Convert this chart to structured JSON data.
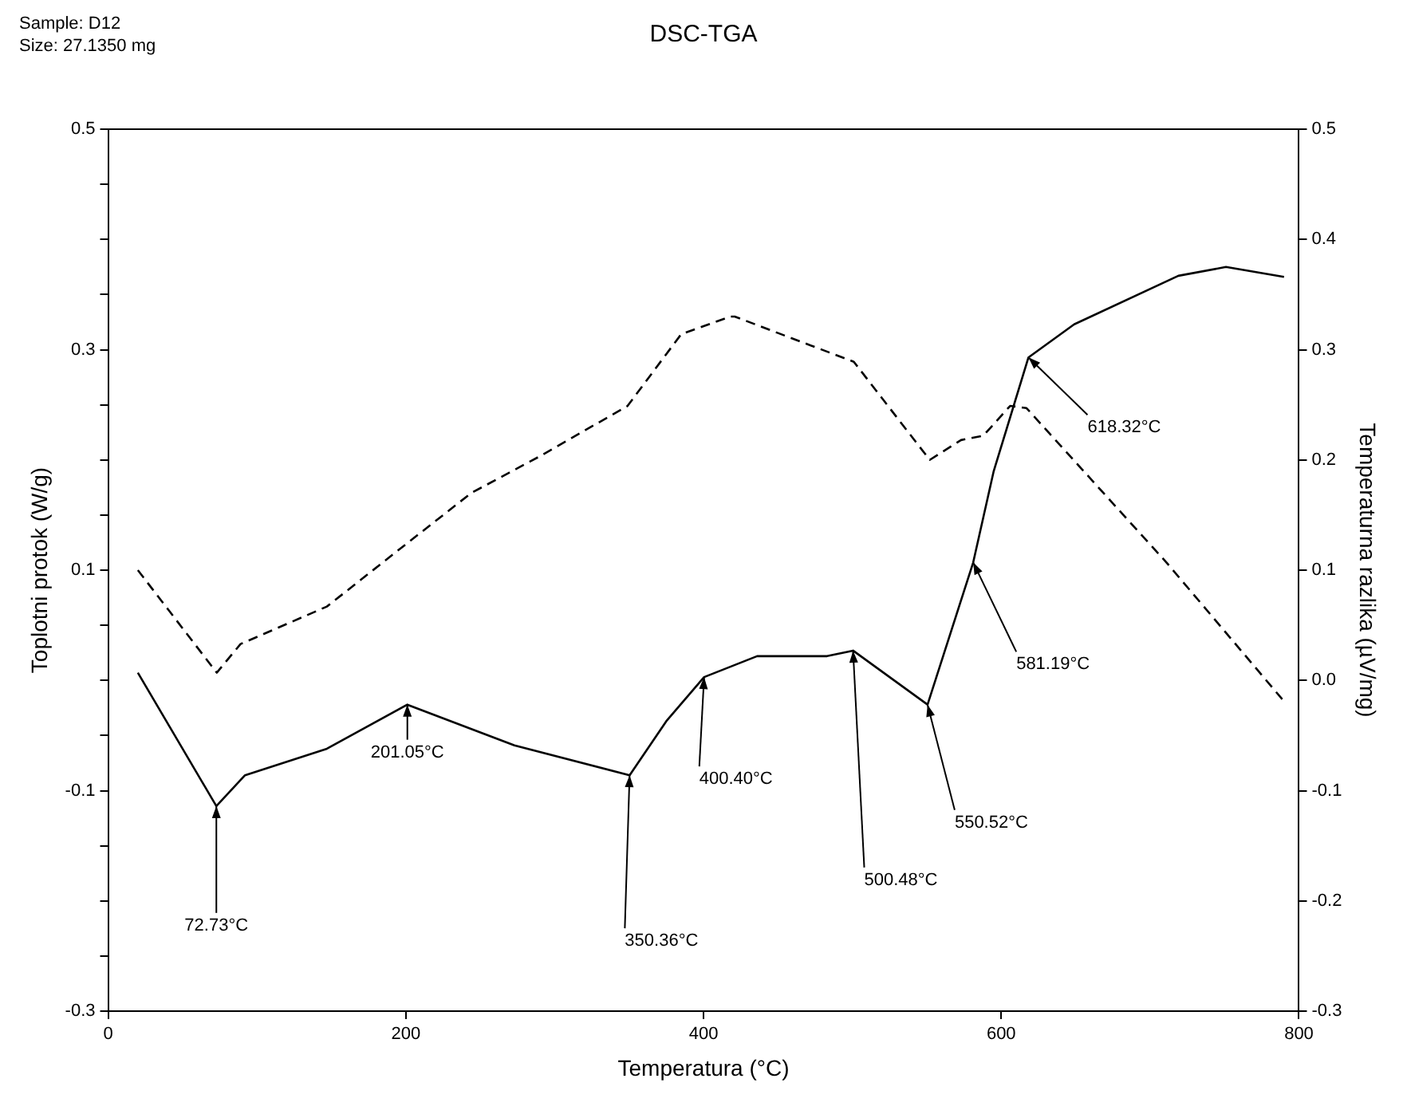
{
  "chart_data": {
    "type": "line",
    "title": "DSC-TGA",
    "xlabel": "Temperatura (°C)",
    "ylabel": "Toplotni protok (W/g)",
    "y2label": "Temperaturna razlika (µV/mg)",
    "annotations": [
      "Sample: D12",
      "Size: 27.1350 mg",
      {
        "text": "72.73°C",
        "x": 72.73,
        "y": -0.114
      },
      {
        "text": "201.05°C",
        "x": 201.05,
        "y": -0.022
      },
      {
        "text": "350.36°C",
        "x": 350.36,
        "y": -0.086
      },
      {
        "text": "400.40°C",
        "x": 400.4,
        "y": 0.003
      },
      {
        "text": "500.48°C",
        "x": 500.48,
        "y": 0.027
      },
      {
        "text": "550.52°C",
        "x": 550.52,
        "y": -0.022
      },
      {
        "text": "581.19°C",
        "x": 581.19,
        "y": 0.107
      },
      {
        "text": "618.32°C",
        "x": 618.32,
        "y": 0.293
      }
    ],
    "xlim": [
      0,
      800
    ],
    "xticks": [
      0,
      200,
      400,
      600,
      800
    ],
    "ylim": [
      -0.3,
      0.5
    ],
    "yticks": [
      -0.3,
      {
        "value": -0.25,
        "label": null
      },
      {
        "value": -0.2,
        "label": null
      },
      {
        "value": -0.15,
        "label": null
      },
      -0.1,
      {
        "value": -0.05,
        "label": null
      },
      {
        "value": 0,
        "label": null
      },
      {
        "value": 0.05,
        "label": null
      },
      0.1,
      {
        "value": 0.15,
        "label": null
      },
      {
        "value": 0.2,
        "label": null
      },
      {
        "value": 0.25,
        "label": null
      },
      0.3,
      {
        "value": 0.35,
        "label": null
      },
      {
        "value": 0.4,
        "label": null
      },
      {
        "value": 0.45,
        "label": null
      },
      0.5
    ],
    "y2lim": [
      -0.3,
      0.5
    ],
    "y2ticks": [
      -0.3,
      -0.2,
      -0.1,
      {
        "value": 0,
        "label": "0.0"
      },
      0.1,
      0.2,
      0.3,
      0.4,
      0.5
    ],
    "grid": false,
    "legend": false,
    "marker": "none",
    "series": [
      {
        "color": "#000000",
        "line_style": "dashed",
        "x": [
          20,
          73,
          89,
          147,
          193,
          244,
          291,
          349,
          385,
          418,
          421,
          501,
          552,
          573,
          588,
          606,
          617,
          711,
          790
        ],
        "values": [
          0.1,
          0.007,
          0.033,
          0.067,
          0.116,
          0.17,
          0.204,
          0.249,
          0.314,
          0.33,
          0.33,
          0.289,
          0.2,
          0.218,
          0.222,
          0.249,
          0.247,
          0.107,
          -0.019
        ]
      },
      {
        "color": "#000000",
        "line_style": "solid",
        "x": [
          20,
          72.73,
          92,
          147,
          201.05,
          273,
          350.36,
          375,
          400.4,
          436,
          451,
          483,
          500.48,
          550.52,
          581.19,
          595,
          618.32,
          649,
          719,
          751,
          790
        ],
        "values": [
          0.007,
          -0.114,
          -0.086,
          -0.062,
          -0.022,
          -0.059,
          -0.086,
          -0.037,
          0.003,
          0.022,
          0.022,
          0.022,
          0.027,
          -0.022,
          0.107,
          0.19,
          0.293,
          0.323,
          0.367,
          0.375,
          0.366
        ]
      }
    ]
  }
}
